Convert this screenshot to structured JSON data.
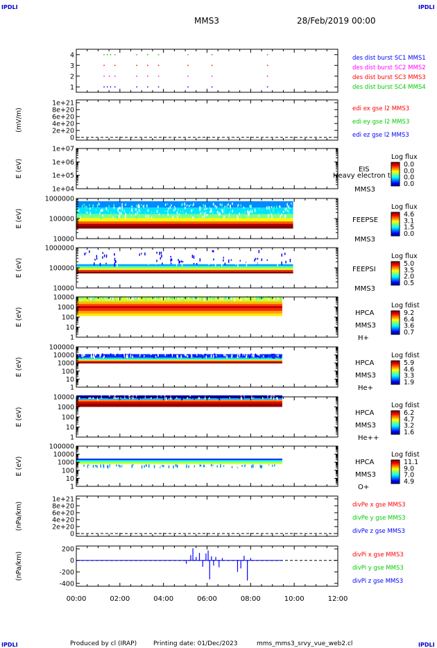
{
  "corner_label": "IPDLI",
  "header": {
    "spacecraft": "MMS3",
    "date": "28/Feb/2019 00:00"
  },
  "footer": {
    "produced_by": "Produced by cl (IRAP)",
    "printing_date": "Printing date: 01/Dec/2023",
    "script_name": "mms_mms3_srvy_vue_web2.cl"
  },
  "chart_data": [
    {
      "type": "scatter",
      "id": "burst",
      "ylim": [
        0.5,
        4.5
      ],
      "yticks": [
        "1",
        "2",
        "3",
        "4"
      ],
      "legend": [
        {
          "label": "des dist burst SC1 MMS1",
          "color": "#0000ff"
        },
        {
          "label": "des dist burst SC2 MMS2",
          "color": "#ff00ff"
        },
        {
          "label": "des dist burst SC3 MMS3",
          "color": "#ff0000"
        },
        {
          "label": "des dist burst SC4 MMS4",
          "color": "#00cc00"
        }
      ],
      "series": [
        {
          "level": 4,
          "color": "#00cc00",
          "hours": [
            1.25,
            1.4,
            1.55,
            1.75,
            2.75,
            3.25,
            3.75,
            5.1,
            6.2,
            8.75
          ]
        },
        {
          "level": 3,
          "color": "#ff0000",
          "hours": [
            1.25,
            1.75,
            2.75,
            3.25,
            3.75,
            5.1,
            6.2,
            8.75
          ]
        },
        {
          "level": 2,
          "color": "#ff00ff",
          "hours": [
            1.25,
            1.5,
            1.75,
            2.75,
            3.25,
            3.75,
            5.1,
            6.2,
            8.75
          ]
        },
        {
          "level": 1,
          "color": "#0000ff",
          "hours": [
            1.25,
            1.4,
            1.55,
            1.75,
            2.75,
            3.25,
            3.75,
            5.1,
            6.2,
            8.75
          ]
        }
      ]
    },
    {
      "type": "line",
      "id": "edi",
      "ylabel": "(mV/m)",
      "yticks": [
        "1e+21",
        "8e+20",
        "6e+20",
        "4e+20",
        "2e+20",
        "0"
      ],
      "legend": [
        {
          "label": "edi ex gse l2 MMS3",
          "color": "#ff0000"
        },
        {
          "label": "edi ey gse l2 MMS3",
          "color": "#00cc00"
        },
        {
          "label": "edi ez gse l2 MMS3",
          "color": "#0000ff"
        }
      ]
    },
    {
      "type": "heatmap",
      "id": "eis",
      "ylabel": "E (eV)",
      "yticks": [
        "1e+07",
        "1e+06",
        "1e+05",
        "1e+04"
      ],
      "labels": [
        "EIS",
        "Heavy electron tof",
        "MMS3"
      ],
      "colorbar": {
        "title": "Log flux",
        "ticks": [
          "0.0",
          "0.0",
          "0.0",
          "0.0"
        ]
      },
      "band_rows": []
    },
    {
      "type": "heatmap",
      "id": "feepse",
      "ylabel": "E (eV)",
      "yticks": [
        "1000000",
        "100000",
        "10000"
      ],
      "labels": [
        "FEEPSE",
        "MMS3"
      ],
      "colorbar": {
        "title": "Log flux",
        "ticks": [
          "4.6",
          "3.1",
          "1.5",
          "0.0"
        ]
      },
      "x_range_hours": [
        0,
        9.95
      ],
      "band_rows": [
        {
          "value": 4.6,
          "log10E": [
            4.5,
            4.62
          ]
        },
        {
          "value": 4.4,
          "log10E": [
            4.62,
            4.74
          ]
        },
        {
          "value": 3.6,
          "log10E": [
            4.74,
            4.86
          ]
        },
        {
          "value": 2.9,
          "log10E": [
            4.86,
            5.02
          ]
        },
        {
          "value": 2.3,
          "log10E": [
            5.02,
            5.22
          ]
        },
        {
          "value": 1.6,
          "log10E": [
            5.22,
            5.55
          ]
        },
        {
          "value": 1.2,
          "log10E": [
            5.55,
            5.86
          ]
        }
      ],
      "speckle": {
        "value": 2.0,
        "log10E": [
          5.1,
          5.8
        ],
        "count": 260
      }
    },
    {
      "type": "heatmap",
      "id": "feepsi",
      "ylabel": "E (eV)",
      "yticks": [
        "1000000",
        "100000",
        "10000"
      ],
      "labels": [
        "FEEPSI",
        "MMS3"
      ],
      "colorbar": {
        "title": "Log flux",
        "ticks": [
          "5.0",
          "3.5",
          "2.0",
          "0.5"
        ]
      },
      "x_range_hours": [
        0,
        9.95
      ],
      "band_rows": [
        {
          "value": 5.0,
          "log10E": [
            4.72,
            4.82
          ]
        },
        {
          "value": 4.2,
          "log10E": [
            4.82,
            4.9
          ]
        },
        {
          "value": 3.2,
          "log10E": [
            4.9,
            4.98
          ]
        },
        {
          "value": 2.6,
          "log10E": [
            4.98,
            5.08
          ]
        },
        {
          "value": 1.8,
          "log10E": [
            5.08,
            5.18
          ]
        }
      ],
      "speckle": {
        "value": 1.0,
        "log10E": [
          5.18,
          5.9
        ],
        "count": 130
      }
    },
    {
      "type": "heatmap",
      "id": "hpca-h",
      "ylabel": "E (eV)",
      "yticks": [
        "10000",
        "1000",
        "100",
        "10",
        "1"
      ],
      "labels": [
        "HPCA",
        "MMS3",
        "H+"
      ],
      "colorbar": {
        "title": "Log fdist",
        "ticks": [
          "9.2",
          "6.4",
          "3.6",
          "0.7"
        ]
      },
      "x_range_hours": [
        0,
        9.45
      ],
      "band_rows": [
        {
          "value": 5.6,
          "log10E": [
            3.55,
            4.05
          ]
        },
        {
          "value": 6.6,
          "log10E": [
            3.3,
            3.55
          ]
        },
        {
          "value": 7.6,
          "log10E": [
            3.1,
            3.3
          ]
        },
        {
          "value": 8.6,
          "log10E": [
            2.85,
            3.1
          ]
        },
        {
          "value": 7.8,
          "log10E": [
            2.6,
            2.85
          ]
        },
        {
          "value": 6.8,
          "log10E": [
            2.35,
            2.6
          ]
        },
        {
          "value": 6.2,
          "log10E": [
            2.1,
            2.35
          ]
        }
      ],
      "speckle": {
        "value": 4.5,
        "log10E": [
          3.9,
          4.1
        ],
        "count": 150
      }
    },
    {
      "type": "heatmap",
      "id": "hpca-he",
      "ylabel": "E (eV)",
      "yticks": [
        "100000",
        "10000",
        "1000",
        "100",
        "10",
        "1"
      ],
      "labels": [
        "HPCA",
        "MMS3",
        "He+"
      ],
      "colorbar": {
        "title": "Log fdist",
        "ticks": [
          "5.9",
          "4.6",
          "3.3",
          "1.9"
        ]
      },
      "x_range_hours": [
        0,
        9.45
      ],
      "band_rows": [
        {
          "value": 2.6,
          "log10E": [
            3.65,
            4.1
          ]
        },
        {
          "value": 3.3,
          "log10E": [
            3.45,
            3.65
          ]
        },
        {
          "value": 4.3,
          "log10E": [
            3.3,
            3.45
          ]
        },
        {
          "value": 5.1,
          "log10E": [
            3.15,
            3.3
          ]
        },
        {
          "value": 5.8,
          "log10E": [
            2.95,
            3.15
          ]
        }
      ],
      "speckle": {
        "value": 2.4,
        "log10E": [
          3.9,
          4.2
        ],
        "count": 140
      }
    },
    {
      "type": "heatmap",
      "id": "hpca-hepp",
      "ylabel": "E (eV)",
      "yticks": [
        "10000",
        "1000",
        "100",
        "10",
        "1"
      ],
      "labels": [
        "HPCA",
        "MMS3",
        "He++"
      ],
      "colorbar": {
        "title": "Log fdist",
        "ticks": [
          "6.2",
          "4.7",
          "3.2",
          "1.6"
        ]
      },
      "x_range_hours": [
        0,
        9.45
      ],
      "band_rows": [
        {
          "value": 2.0,
          "log10E": [
            3.85,
            4.15
          ]
        },
        {
          "value": 3.0,
          "log10E": [
            3.7,
            3.85
          ]
        },
        {
          "value": 5.0,
          "log10E": [
            3.55,
            3.7
          ]
        },
        {
          "value": 5.7,
          "log10E": [
            3.35,
            3.55
          ]
        },
        {
          "value": 6.1,
          "log10E": [
            3.0,
            3.35
          ]
        }
      ],
      "speckle": {
        "value": 1.9,
        "log10E": [
          3.95,
          4.15
        ],
        "count": 90
      }
    },
    {
      "type": "heatmap",
      "id": "hpca-o",
      "ylabel": "E (eV)",
      "yticks": [
        "100000",
        "10000",
        "1000",
        "100",
        "10",
        "1"
      ],
      "labels": [
        "HPCA",
        "MMS3",
        "O+"
      ],
      "colorbar": {
        "title": "Log fdist",
        "ticks": [
          "11.1",
          "9.0",
          "7.0",
          "4.9"
        ]
      },
      "x_range_hours": [
        0,
        9.45
      ],
      "band_rows": [
        {
          "value": 6.0,
          "log10E": [
            3.25,
            3.45
          ]
        },
        {
          "value": 7.2,
          "log10E": [
            3.1,
            3.25
          ]
        },
        {
          "value": 8.0,
          "log10E": [
            2.9,
            3.1
          ]
        },
        {
          "value": 8.6,
          "log10E": [
            2.75,
            2.9
          ]
        }
      ],
      "speckle": {
        "value": 6.5,
        "log10E": [
          2.6,
          2.75
        ],
        "count": 120
      }
    },
    {
      "type": "line",
      "id": "divpe",
      "ylabel": "(nPa/km)",
      "yticks": [
        "1e+21",
        "8e+20",
        "6e+20",
        "4e+20",
        "2e+20",
        "0"
      ],
      "legend": [
        {
          "label": "divPe x gse MMS3",
          "color": "#ff0000"
        },
        {
          "label": "divPe y gse MMS3",
          "color": "#00cc00"
        },
        {
          "label": "divPe z gse MMS3",
          "color": "#0000ff"
        }
      ]
    },
    {
      "type": "line",
      "id": "divpi",
      "ylabel": "(nPa/km)",
      "ylim": [
        -450,
        250
      ],
      "yticks": [
        "200",
        "0",
        "-200",
        "-400"
      ],
      "legend": [
        {
          "label": "divPi x gse MMS3",
          "color": "#ff0000"
        },
        {
          "label": "divPi y gse MMS3",
          "color": "#00cc00"
        },
        {
          "label": "divPi z gse MMS3",
          "color": "#0000ff"
        }
      ],
      "spikes": [
        {
          "hour": 5.05,
          "value": -60
        },
        {
          "hour": 5.25,
          "value": 90
        },
        {
          "hour": 5.35,
          "value": 210
        },
        {
          "hour": 5.5,
          "value": 60
        },
        {
          "hour": 5.65,
          "value": 130
        },
        {
          "hour": 5.8,
          "value": -110
        },
        {
          "hour": 5.95,
          "value": 120
        },
        {
          "hour": 6.05,
          "value": 170
        },
        {
          "hour": 6.12,
          "value": -330
        },
        {
          "hour": 6.2,
          "value": 70
        },
        {
          "hour": 6.3,
          "value": -90
        },
        {
          "hour": 6.4,
          "value": 60
        },
        {
          "hour": 6.55,
          "value": -120
        },
        {
          "hour": 6.7,
          "value": 40
        },
        {
          "hour": 7.4,
          "value": -200
        },
        {
          "hour": 7.55,
          "value": -140
        },
        {
          "hour": 7.7,
          "value": 80
        },
        {
          "hour": 7.85,
          "value": -350
        },
        {
          "hour": 8.0,
          "value": 40
        }
      ]
    }
  ],
  "xaxis": {
    "range_hours": [
      0,
      12
    ],
    "ticks": [
      "00:00",
      "02:00",
      "04:00",
      "06:00",
      "08:00",
      "10:00",
      "12:00"
    ]
  }
}
